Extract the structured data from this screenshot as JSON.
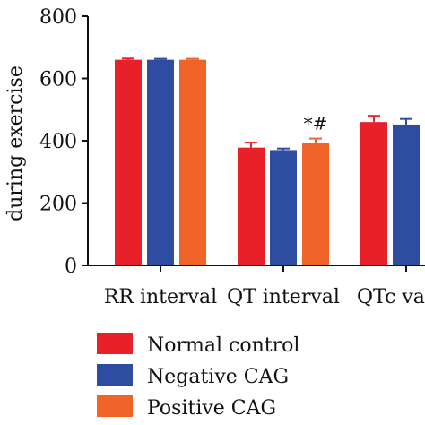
{
  "chart_data": {
    "type": "bar",
    "ylabel": "during exercise",
    "ylim": [
      0,
      800
    ],
    "yticks": [
      0,
      200,
      400,
      600,
      800
    ],
    "categories": [
      "RR interval",
      "QT interval",
      "QTc va"
    ],
    "series": [
      {
        "name": "Normal control",
        "color": "#e8202a",
        "values": [
          660,
          378,
          460
        ],
        "errors": [
          4,
          16,
          20
        ]
      },
      {
        "name": "Negative CAG",
        "color": "#2e4ca0",
        "values": [
          660,
          370,
          452
        ],
        "errors": [
          3,
          5,
          18
        ]
      },
      {
        "name": "Positive CAG",
        "color": "#f0642a",
        "values": [
          660,
          393,
          null
        ],
        "errors": [
          3,
          14,
          null
        ]
      }
    ],
    "annotations": [
      {
        "text": "*#",
        "category": 1,
        "series": 2
      }
    ],
    "legend_position": "bottom-left",
    "grid": false
  }
}
